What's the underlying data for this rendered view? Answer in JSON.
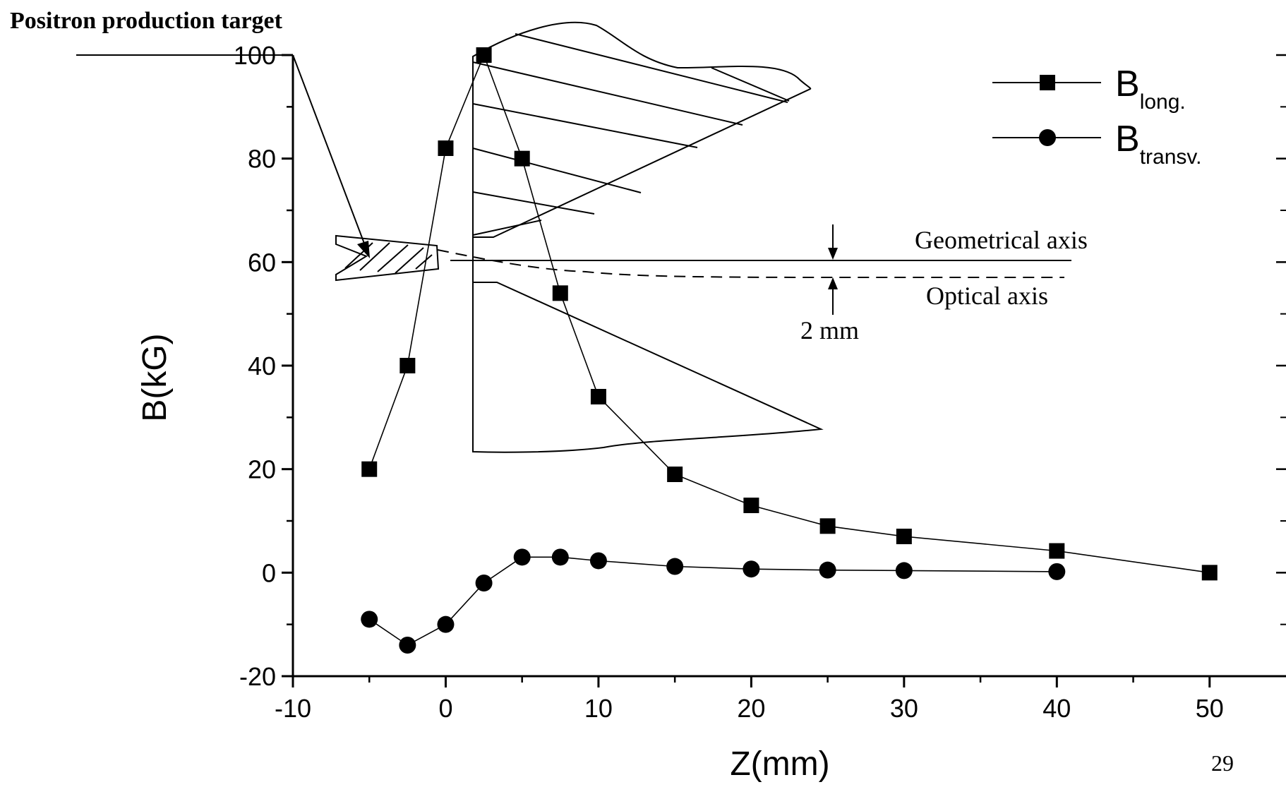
{
  "page_title": "Positron production target",
  "page_number": "29",
  "chart_data": {
    "type": "line",
    "title": "",
    "xlabel": "Z(mm)",
    "ylabel": "B(kG)",
    "xlim": [
      -10,
      55
    ],
    "ylim": [
      -20,
      100
    ],
    "x_ticks": [
      -10,
      0,
      10,
      20,
      30,
      40,
      50
    ],
    "y_ticks": [
      -20,
      0,
      20,
      40,
      60,
      80,
      100
    ],
    "grid": false,
    "legend_position": "top-right",
    "series": [
      {
        "name_main": "B",
        "name_sub": "long.",
        "marker": "square",
        "points": [
          {
            "x": -5,
            "y": 20
          },
          {
            "x": -2.5,
            "y": 40
          },
          {
            "x": 0,
            "y": 82
          },
          {
            "x": 2.5,
            "y": 100
          },
          {
            "x": 5,
            "y": 80
          },
          {
            "x": 7.5,
            "y": 54
          },
          {
            "x": 10,
            "y": 34
          },
          {
            "x": 15,
            "y": 19
          },
          {
            "x": 20,
            "y": 13
          },
          {
            "x": 25,
            "y": 9
          },
          {
            "x": 30,
            "y": 7
          },
          {
            "x": 40,
            "y": 4.2
          },
          {
            "x": 50,
            "y": 0
          }
        ]
      },
      {
        "name_main": "B",
        "name_sub": "transv.",
        "marker": "circle",
        "points": [
          {
            "x": -5,
            "y": -9
          },
          {
            "x": -2.5,
            "y": -14
          },
          {
            "x": 0,
            "y": -10
          },
          {
            "x": 2.5,
            "y": -2
          },
          {
            "x": 5,
            "y": 3
          },
          {
            "x": 7.5,
            "y": 3
          },
          {
            "x": 10,
            "y": 2.3
          },
          {
            "x": 15,
            "y": 1.2
          },
          {
            "x": 20,
            "y": 0.7
          },
          {
            "x": 25,
            "y": 0.5
          },
          {
            "x": 30,
            "y": 0.4
          },
          {
            "x": 40,
            "y": 0.2
          }
        ]
      }
    ],
    "annotations": {
      "geometrical_axis": "Geometrical axis",
      "optical_axis": "Optical axis",
      "offset": "2 mm"
    }
  }
}
